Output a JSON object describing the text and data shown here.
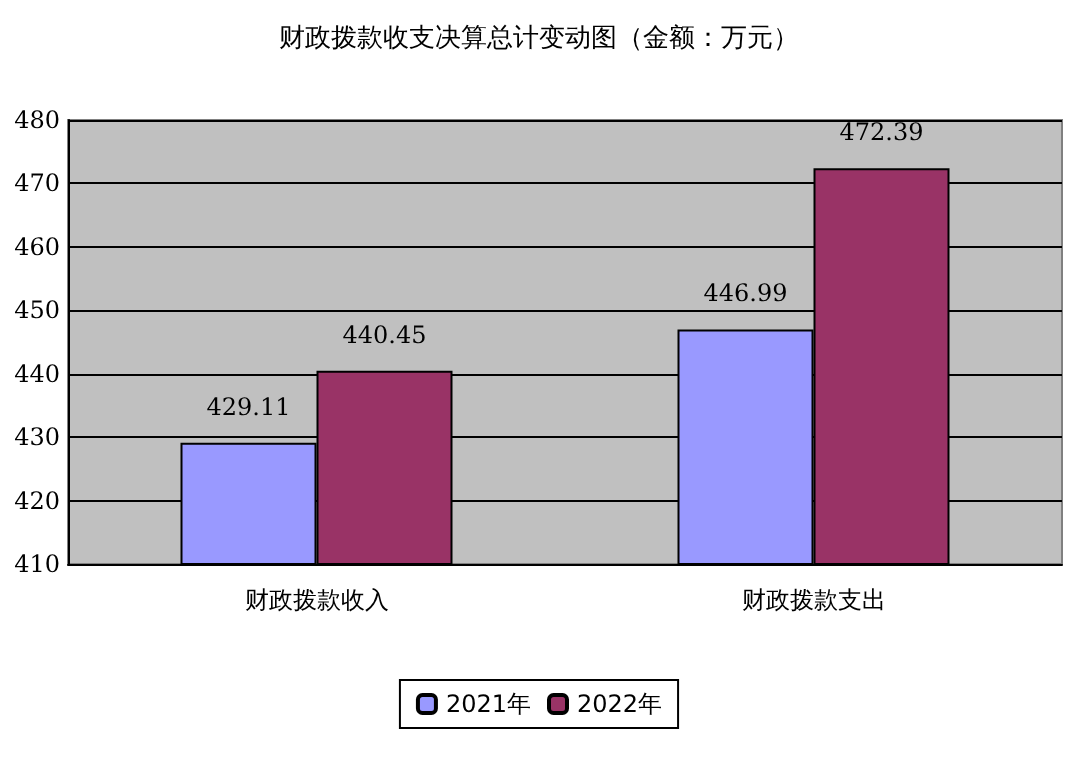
{
  "chart_data": {
    "type": "bar",
    "title": "财政拨款收支决算总计变动图（金额：万元）",
    "categories": [
      "财政拨款收入",
      "财政拨款支出"
    ],
    "series": [
      {
        "name": "2021年",
        "color": "#9999ff",
        "values": [
          429.11,
          446.99
        ]
      },
      {
        "name": "2022年",
        "color": "#993366",
        "values": [
          440.45,
          472.39
        ]
      }
    ],
    "ylim": [
      410,
      480
    ],
    "yticks": [
      410,
      420,
      430,
      440,
      450,
      460,
      470,
      480
    ],
    "grid": "y",
    "legend": "bottom",
    "data_labels": true
  }
}
